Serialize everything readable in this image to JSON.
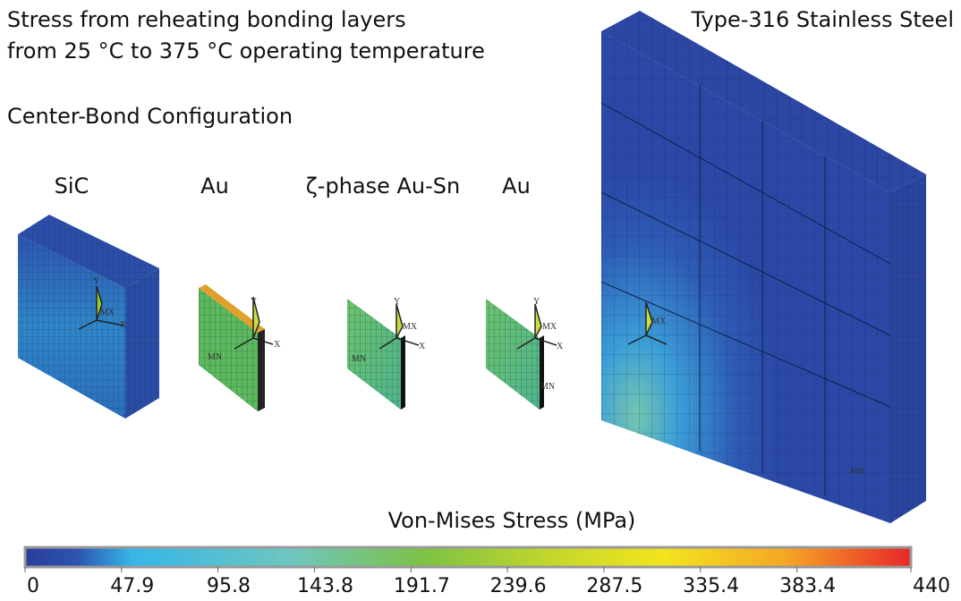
{
  "header": {
    "title_lines": [
      "Stress from reheating bonding layers",
      "from 25 °C to 375 °C operating temperature"
    ],
    "configuration": "Center-Bond Configuration"
  },
  "parts": [
    {
      "label": "SiC",
      "annotations": [
        "Y",
        "MX",
        "X"
      ]
    },
    {
      "label": "Au",
      "annotations": [
        "Y",
        "X",
        "MN"
      ]
    },
    {
      "label": "ζ-phase Au-Sn",
      "annotations": [
        "Y",
        "MX",
        "X",
        "MN"
      ]
    },
    {
      "label": "Au",
      "annotations": [
        "Y",
        "MX",
        "X",
        "MN"
      ]
    },
    {
      "label": "Type-316 Stainless Steel",
      "annotations": [
        "MX",
        "MN"
      ]
    }
  ],
  "colorbar": {
    "title": "Von-Mises Stress  (MPa)",
    "range": [
      0,
      440
    ],
    "ticks": [
      0,
      47.9,
      95.8,
      143.8,
      191.7,
      239.6,
      287.5,
      335.4,
      383.4,
      440
    ]
  }
}
